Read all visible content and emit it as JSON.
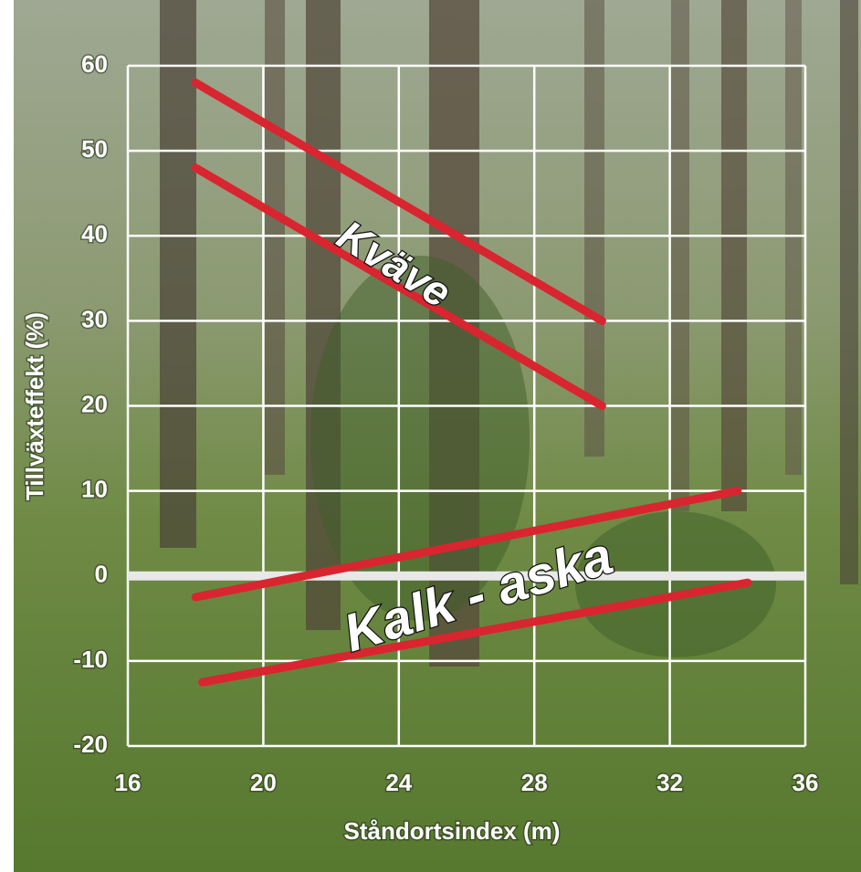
{
  "chart_data": {
    "type": "line",
    "xlabel": "Ståndortsindex (m)",
    "ylabel": "Tillväxteffekt (%)",
    "xlim": [
      16,
      36
    ],
    "xticks": [
      16,
      20,
      24,
      28,
      32,
      36
    ],
    "ylim": [
      -20,
      60
    ],
    "yticks": [
      -20,
      -10,
      0,
      10,
      20,
      30,
      40,
      50,
      60
    ],
    "grid": true,
    "series": [
      {
        "color": "#d9252f",
        "x": [
          18,
          30
        ],
        "values": [
          58,
          30
        ]
      },
      {
        "color": "#d9252f",
        "x": [
          18,
          30
        ],
        "values": [
          48,
          20
        ]
      },
      {
        "color": "#d9252f",
        "x": [
          18,
          34
        ],
        "values": [
          -2.5,
          10
        ]
      },
      {
        "color": "#d9252f",
        "x": [
          18.2,
          34.3
        ],
        "values": [
          -12.5,
          -0.8
        ]
      }
    ],
    "annotations": [
      {
        "text": "Kväve"
      },
      {
        "text": "Kalk - aska"
      }
    ]
  }
}
